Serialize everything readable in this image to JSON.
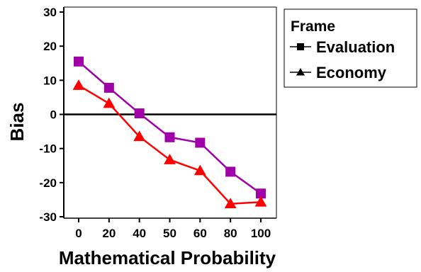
{
  "chart_data": {
    "type": "line",
    "title": "",
    "xlabel": "Mathematical Probability",
    "ylabel": "Bias",
    "categories": [
      "0",
      "20",
      "40",
      "50",
      "60",
      "80",
      "100"
    ],
    "yticks": [
      "30",
      "20",
      "10",
      "0",
      "-10",
      "-20",
      "-30"
    ],
    "ylim": [
      -30,
      30
    ],
    "reference_line": 0,
    "grid": false,
    "legend": {
      "title": "Frame",
      "placement": "top-right outside"
    },
    "series": [
      {
        "name": "Evaluation",
        "marker": "square",
        "color": "#a000a8",
        "legend_color": "#000000",
        "values": [
          15.5,
          7.8,
          0.3,
          -6.7,
          -8.3,
          -16.8,
          -23.2
        ]
      },
      {
        "name": "Economy",
        "marker": "triangle",
        "color": "#ff0000",
        "legend_color": "#000000",
        "values": [
          8.5,
          3.2,
          -6.5,
          -13.3,
          -16.5,
          -26.2,
          -25.7
        ]
      }
    ]
  }
}
